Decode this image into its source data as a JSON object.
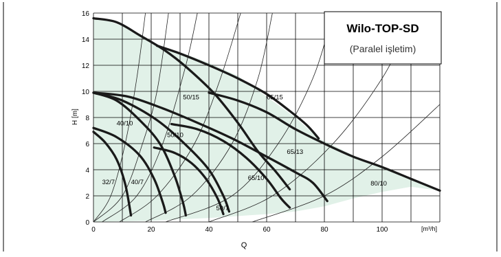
{
  "chart_data": {
    "type": "line",
    "title": "Wilo-TOP-SD",
    "subtitle": "(Paralel işletim)",
    "xlabel": "Q",
    "ylabel": "H [m]",
    "x_unit_label": "[m³/h]",
    "xlim": [
      0,
      120
    ],
    "ylim": [
      0,
      16
    ],
    "x_ticks": [
      0,
      20,
      40,
      60,
      80,
      100
    ],
    "y_ticks": [
      0,
      2,
      4,
      6,
      8,
      10,
      12,
      14,
      16
    ],
    "grid": true,
    "colors": {
      "line": "#1a1a1a",
      "thin": "#222222",
      "fill": "#e1f1e8",
      "frame": "#000000"
    },
    "shaded_region": [
      [
        0,
        15.6
      ],
      [
        5,
        15.4
      ],
      [
        10,
        15
      ],
      [
        16,
        14.2
      ],
      [
        22,
        13.5
      ],
      [
        30,
        13
      ],
      [
        40,
        12.2
      ],
      [
        50,
        11.2
      ],
      [
        60,
        9.6
      ],
      [
        70,
        8
      ],
      [
        78,
        6.4
      ],
      [
        82,
        6
      ],
      [
        90,
        5.1
      ],
      [
        100,
        4.2
      ],
      [
        110,
        3.3
      ],
      [
        120,
        2.4
      ],
      [
        110,
        2.7
      ],
      [
        100,
        2.3
      ],
      [
        90,
        1.8
      ],
      [
        80,
        1.2
      ],
      [
        70,
        0.8
      ],
      [
        60,
        0.6
      ],
      [
        40,
        0.3
      ],
      [
        20,
        0.1
      ],
      [
        0,
        0
      ]
    ],
    "series": [
      {
        "name": "32/7",
        "points": [
          [
            0,
            6.9
          ],
          [
            4,
            6.1
          ],
          [
            8,
            4.8
          ],
          [
            11,
            2.9
          ],
          [
            13,
            0.5
          ]
        ]
      },
      {
        "name": "40/7",
        "points": [
          [
            0,
            7.2
          ],
          [
            8,
            6.5
          ],
          [
            16,
            5.1
          ],
          [
            21,
            3.3
          ],
          [
            24,
            1.5
          ],
          [
            25,
            0.7
          ]
        ]
      },
      {
        "name": "40/10",
        "points": [
          [
            0,
            9.9
          ],
          [
            8,
            9.3
          ],
          [
            16,
            7.8
          ],
          [
            23,
            6.0
          ],
          [
            28,
            3.6
          ],
          [
            31,
            1.5
          ],
          [
            32,
            0.5
          ]
        ]
      },
      {
        "name": "50/7",
        "points": [
          [
            21,
            5.7
          ],
          [
            28,
            5.3
          ],
          [
            34,
            4.5
          ],
          [
            39,
            3.3
          ],
          [
            43,
            1.8
          ],
          [
            45,
            0.6
          ]
        ]
      },
      {
        "name": "50/10",
        "points": [
          [
            0,
            9.9
          ],
          [
            10,
            9.3
          ],
          [
            22,
            7.8
          ],
          [
            32,
            5.9
          ],
          [
            40,
            4.0
          ],
          [
            45,
            2.0
          ],
          [
            47,
            0.8
          ]
        ]
      },
      {
        "name": "65/10",
        "points": [
          [
            27,
            7.5
          ],
          [
            36,
            7.1
          ],
          [
            45,
            6.2
          ],
          [
            53,
            4.9
          ],
          [
            60,
            3.3
          ],
          [
            65,
            1.8
          ],
          [
            68,
            1.1
          ]
        ]
      },
      {
        "name": "50/15",
        "points": [
          [
            0,
            15.6
          ],
          [
            8,
            15.3
          ],
          [
            16,
            14.3
          ],
          [
            25,
            13.1
          ],
          [
            33,
            11.7
          ],
          [
            42,
            9.8
          ],
          [
            50,
            7.6
          ],
          [
            57,
            5.4
          ],
          [
            63,
            3.9
          ],
          [
            68,
            2.5
          ]
        ]
      },
      {
        "name": "65/13",
        "points": [
          [
            0,
            9.9
          ],
          [
            12,
            9.6
          ],
          [
            24,
            8.7
          ],
          [
            36,
            7.6
          ],
          [
            48,
            6.4
          ],
          [
            60,
            5.0
          ],
          [
            70,
            3.8
          ],
          [
            76,
            3.0
          ],
          [
            81,
            1.6
          ]
        ]
      },
      {
        "name": "65/15",
        "points": [
          [
            22,
            13.5
          ],
          [
            30,
            12.9
          ],
          [
            40,
            12.0
          ],
          [
            50,
            11.0
          ],
          [
            60,
            9.8
          ],
          [
            68,
            8.5
          ],
          [
            74,
            7.4
          ],
          [
            78,
            6.4
          ]
        ]
      },
      {
        "name": "80/10",
        "points": [
          [
            40,
            9.9
          ],
          [
            50,
            9.3
          ],
          [
            60,
            8.4
          ],
          [
            70,
            7.1
          ],
          [
            80,
            6.0
          ],
          [
            90,
            5.0
          ],
          [
            100,
            4.2
          ],
          [
            110,
            3.3
          ],
          [
            120,
            2.4
          ]
        ]
      }
    ],
    "thin_curves": [
      [
        [
          0,
          0
        ],
        [
          6,
          2
        ],
        [
          11,
          6
        ],
        [
          15,
          11
        ],
        [
          18,
          16
        ]
      ],
      [
        [
          0,
          0
        ],
        [
          10,
          2
        ],
        [
          17,
          6
        ],
        [
          22,
          10
        ],
        [
          26,
          16
        ]
      ],
      [
        [
          3,
          0
        ],
        [
          15,
          2
        ],
        [
          24,
          6
        ],
        [
          32,
          12
        ],
        [
          36,
          16
        ]
      ],
      [
        [
          9,
          0
        ],
        [
          22,
          2
        ],
        [
          35,
          6
        ],
        [
          44,
          11
        ],
        [
          51,
          16
        ]
      ],
      [
        [
          18,
          0
        ],
        [
          34,
          2
        ],
        [
          48,
          6
        ],
        [
          57,
          11
        ],
        [
          62,
          16
        ]
      ],
      [
        [
          25,
          0
        ],
        [
          48,
          2
        ],
        [
          64,
          6
        ],
        [
          76,
          11
        ],
        [
          83,
          16
        ]
      ],
      [
        [
          40,
          0
        ],
        [
          62,
          2
        ],
        [
          83,
          6
        ],
        [
          100,
          11
        ],
        [
          109,
          15
        ]
      ],
      [
        [
          55,
          0
        ],
        [
          80,
          2
        ],
        [
          100,
          5
        ],
        [
          120,
          9
        ]
      ]
    ],
    "labels": [
      {
        "text": "32/7",
        "x": 3,
        "y": 2.9
      },
      {
        "text": "40/7",
        "x": 13,
        "y": 2.9
      },
      {
        "text": "40/10",
        "x": 8,
        "y": 7.4
      },
      {
        "text": "50/10",
        "x": 25.5,
        "y": 6.5
      },
      {
        "text": "50/15",
        "x": 31,
        "y": 9.4
      },
      {
        "text": "50/7",
        "x": 42.5,
        "y": 0.9
      },
      {
        "text": "65/10",
        "x": 53.5,
        "y": 3.2
      },
      {
        "text": "65/13",
        "x": 67,
        "y": 5.2
      },
      {
        "text": "65/15",
        "x": 60,
        "y": 9.4
      },
      {
        "text": "80/10",
        "x": 96,
        "y": 2.8
      }
    ]
  }
}
